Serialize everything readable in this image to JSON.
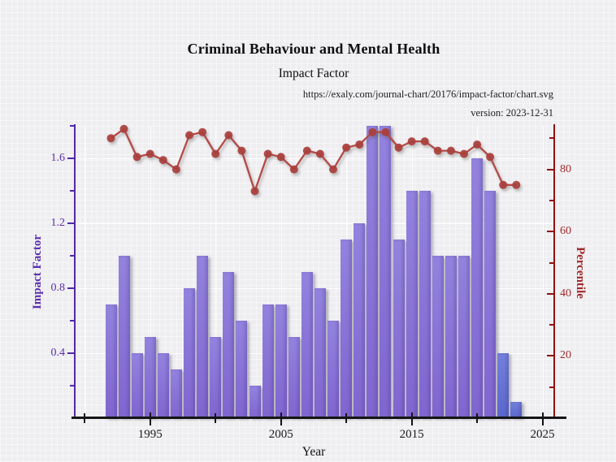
{
  "page": {
    "background_color": "#eeedf0"
  },
  "header": {
    "title": "Criminal Behaviour and Mental Health",
    "subtitle": "Impact Factor",
    "source_url": "https://exaly.com/journal-chart/20176/impact-factor/chart.svg",
    "version_text": "version: 2023-12-31"
  },
  "chart_data": {
    "type": "bar+line",
    "title": "Criminal Behaviour and Mental Health",
    "subtitle": "Impact Factor",
    "x": [
      1992,
      1993,
      1994,
      1995,
      1996,
      1997,
      1998,
      1999,
      2000,
      2001,
      2002,
      2003,
      2004,
      2005,
      2006,
      2007,
      2008,
      2009,
      2010,
      2011,
      2012,
      2013,
      2014,
      2015,
      2016,
      2017,
      2018,
      2019,
      2020,
      2021,
      2022,
      2023
    ],
    "series": [
      {
        "name": "Impact Factor",
        "type": "bar",
        "axis": "left",
        "color": "#8b74d8",
        "gradient": [
          "#9383de",
          "#8065cf"
        ],
        "alt_color": "#6472d5",
        "alt_gradient": [
          "#7381dc",
          "#5a66cb"
        ],
        "alt_color_years": [
          2022,
          2023
        ],
        "values": [
          0.7,
          1.0,
          0.4,
          0.5,
          0.4,
          0.3,
          0.8,
          1.0,
          0.5,
          0.9,
          0.6,
          0.2,
          0.7,
          0.7,
          0.5,
          0.9,
          0.8,
          0.6,
          1.1,
          1.2,
          1.8,
          1.8,
          1.1,
          1.4,
          1.4,
          1.0,
          1.0,
          1.0,
          1.6,
          1.4,
          0.4,
          0.1
        ]
      },
      {
        "name": "Percentile",
        "type": "line",
        "axis": "right",
        "color": "#b34a46",
        "point_color": "#a93f3c",
        "values": [
          90,
          93,
          84,
          85,
          83,
          80,
          91,
          92,
          85,
          91,
          86,
          73,
          85,
          84,
          80,
          86,
          85,
          80,
          87,
          88,
          92,
          92,
          87,
          89,
          89,
          86,
          86,
          85,
          88,
          84,
          75,
          75
        ]
      }
    ],
    "x_axis": {
      "label": "Year",
      "range": [
        1989.3,
        2025.9
      ],
      "major_ticks": [
        1995,
        2005,
        2015,
        2025
      ],
      "minor_ticks": [
        1990,
        2000,
        2010,
        2020
      ],
      "color": "#151515",
      "label_color": "#1a1a1a"
    },
    "left_axis": {
      "label": "Impact Factor",
      "range": [
        0,
        1.8
      ],
      "major_ticks": [
        0.4,
        0.8,
        1.2,
        1.6
      ],
      "minor_ticks": [
        0.2,
        0.6,
        1.0,
        1.4,
        1.8
      ],
      "color": "#5229aa",
      "label_color": "#5b2fae"
    },
    "right_axis": {
      "label": "Percentile",
      "range": [
        0,
        94
      ],
      "major_ticks": [
        20,
        40,
        60,
        80
      ],
      "minor_ticks": [
        10,
        30,
        50,
        70,
        90
      ],
      "color": "#8e1313",
      "label_color": "#a02a2a"
    },
    "grid": {
      "color": "#ffffff",
      "h_lines": [
        0.4,
        0.8,
        1.2,
        1.6
      ],
      "v_lines": [
        1990,
        1995,
        2000,
        2005,
        2010,
        2015,
        2020,
        2025
      ]
    },
    "legend": null
  }
}
